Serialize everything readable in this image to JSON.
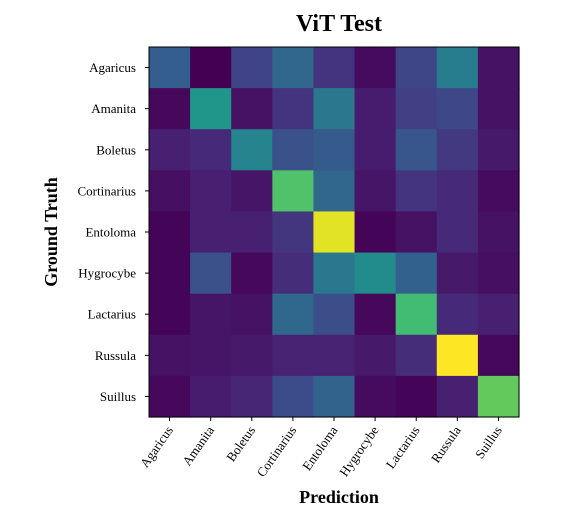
{
  "chart_data": {
    "type": "heatmap",
    "title": "ViT Test",
    "xlabel": "Prediction",
    "ylabel": "Ground Truth",
    "x_categories": [
      "Agaricus",
      "Amanita",
      "Boletus",
      "Cortinarius",
      "Entoloma",
      "Hygrocybe",
      "Lactarius",
      "Russula",
      "Suillus"
    ],
    "y_categories": [
      "Agaricus",
      "Amanita",
      "Boletus",
      "Cortinarius",
      "Entoloma",
      "Hygrocybe",
      "Lactarius",
      "Russula",
      "Suillus"
    ],
    "values": [
      [
        0.3,
        0.0,
        0.2,
        0.33,
        0.15,
        0.03,
        0.21,
        0.42,
        0.05
      ],
      [
        0.02,
        0.52,
        0.05,
        0.15,
        0.4,
        0.08,
        0.19,
        0.22,
        0.05
      ],
      [
        0.09,
        0.12,
        0.45,
        0.25,
        0.29,
        0.08,
        0.27,
        0.17,
        0.07
      ],
      [
        0.04,
        0.09,
        0.06,
        0.72,
        0.33,
        0.06,
        0.15,
        0.12,
        0.03
      ],
      [
        0.01,
        0.09,
        0.09,
        0.16,
        0.96,
        0.01,
        0.05,
        0.12,
        0.05
      ],
      [
        0.01,
        0.25,
        0.02,
        0.13,
        0.4,
        0.48,
        0.31,
        0.07,
        0.04
      ],
      [
        0.01,
        0.06,
        0.05,
        0.34,
        0.24,
        0.02,
        0.69,
        0.12,
        0.09
      ],
      [
        0.05,
        0.06,
        0.07,
        0.1,
        0.1,
        0.07,
        0.13,
        1.0,
        0.02
      ],
      [
        0.02,
        0.08,
        0.11,
        0.23,
        0.32,
        0.03,
        0.01,
        0.09,
        0.76
      ]
    ],
    "colormap": "viridis",
    "vmin": 0,
    "vmax": 1,
    "grid": false
  }
}
